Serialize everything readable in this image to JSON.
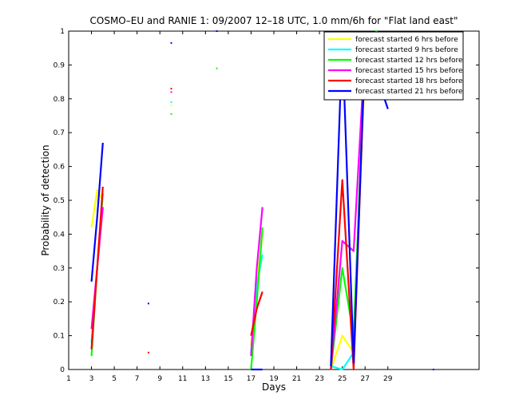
{
  "chart_data": {
    "type": "line",
    "title": "COSMO–EU and RANIE 1: 09/2007 12–18 UTC, 1.0 mm/6h for \"Flat land east\"",
    "xlabel": "Days",
    "ylabel": "Probability of detection",
    "xlim": [
      1,
      37
    ],
    "ylim": [
      0,
      1
    ],
    "xticks": [
      "1",
      "3",
      "5",
      "7",
      "9",
      "11",
      "13",
      "15",
      "17",
      "19",
      "21",
      "23",
      "25",
      "27",
      "29"
    ],
    "yticks": [
      "0",
      "0.1",
      "0.2",
      "0.3",
      "0.4",
      "0.5",
      "0.6",
      "0.7",
      "0.8",
      "0.9",
      "1"
    ],
    "grid": false,
    "legend_position": "top-right",
    "series": [
      {
        "name": "forecast started 6 hrs before",
        "color": "#ffff00",
        "segments": [
          [
            [
              3,
              0.42
            ],
            [
              3.5,
              0.53
            ],
            [
              4,
              0.5
            ]
          ],
          [
            [
              17,
              0.07
            ],
            [
              17.5,
              0.25
            ],
            [
              18,
              0.4
            ]
          ],
          [
            [
              24,
              0.0
            ],
            [
              25,
              0.1
            ],
            [
              26,
              0.05
            ],
            [
              27,
              0.9
            ],
            [
              28,
              0.98
            ],
            [
              29,
              0.99
            ]
          ]
        ],
        "points": [
          [
            10,
            0.78
          ]
        ]
      },
      {
        "name": "forecast started 9 hrs before",
        "color": "#00ffff",
        "segments": [
          [
            [
              3,
              0.08
            ],
            [
              3.5,
              0.3
            ],
            [
              4,
              0.48
            ]
          ],
          [
            [
              17,
              0.05
            ],
            [
              17.5,
              0.25
            ],
            [
              18,
              0.34
            ]
          ],
          [
            [
              24,
              0.01
            ],
            [
              25,
              0.0
            ],
            [
              26,
              0.05
            ],
            [
              27,
              0.93
            ],
            [
              28,
              0.99
            ],
            [
              29,
              0.95
            ]
          ]
        ],
        "points": [
          [
            10,
            0.79
          ]
        ]
      },
      {
        "name": "forecast started 12 hrs before",
        "color": "#00ff00",
        "segments": [
          [
            [
              3,
              0.04
            ],
            [
              3.5,
              0.3
            ],
            [
              4,
              0.52
            ]
          ],
          [
            [
              17,
              0.0
            ],
            [
              17.5,
              0.2
            ],
            [
              18,
              0.42
            ]
          ],
          [
            [
              24,
              0.0
            ],
            [
              25,
              0.3
            ],
            [
              26,
              0.1
            ],
            [
              27,
              0.94
            ],
            [
              28,
              1.0
            ],
            [
              29,
              0.92
            ]
          ]
        ],
        "points": [
          [
            10,
            0.755
          ],
          [
            14,
            0.89
          ]
        ]
      },
      {
        "name": "forecast started 15 hrs before",
        "color": "#ff00ff",
        "segments": [
          [
            [
              3,
              0.12
            ],
            [
              3.5,
              0.3
            ],
            [
              4,
              0.48
            ]
          ],
          [
            [
              17,
              0.04
            ],
            [
              17.5,
              0.3
            ],
            [
              18,
              0.48
            ]
          ],
          [
            [
              24,
              0.0
            ],
            [
              25,
              0.38
            ],
            [
              26,
              0.35
            ],
            [
              27,
              0.95
            ],
            [
              28,
              0.98
            ],
            [
              29,
              0.96
            ]
          ]
        ],
        "points": [
          [
            10,
            0.82
          ]
        ]
      },
      {
        "name": "forecast started 18 hrs before",
        "color": "#ff0000",
        "segments": [
          [
            [
              3,
              0.06
            ],
            [
              3.5,
              0.3
            ],
            [
              4,
              0.54
            ]
          ],
          [
            [
              17,
              0.1
            ],
            [
              17.5,
              0.18
            ],
            [
              18,
              0.23
            ]
          ],
          [
            [
              24,
              0.0
            ],
            [
              25,
              0.56
            ],
            [
              26,
              0.0
            ],
            [
              27,
              0.95
            ],
            [
              28,
              0.945
            ],
            [
              29,
              0.945
            ]
          ]
        ],
        "points": [
          [
            8,
            0.05
          ],
          [
            10,
            0.83
          ]
        ]
      },
      {
        "name": "forecast started 21 hrs before",
        "color": "#0000ff",
        "segments": [
          [
            [
              3,
              0.26
            ],
            [
              3.5,
              0.45
            ],
            [
              4,
              0.67
            ]
          ],
          [
            [
              17,
              0.0
            ],
            [
              18,
              0.0
            ]
          ],
          [
            [
              24,
              0.01
            ],
            [
              25,
              0.98
            ],
            [
              26,
              0.02
            ],
            [
              27,
              0.96
            ],
            [
              28,
              0.87
            ],
            [
              29,
              0.77
            ]
          ]
        ],
        "points": [
          [
            8,
            0.195
          ],
          [
            10,
            0.965
          ],
          [
            14,
            1.0
          ],
          [
            33,
            0.0
          ]
        ]
      }
    ]
  }
}
